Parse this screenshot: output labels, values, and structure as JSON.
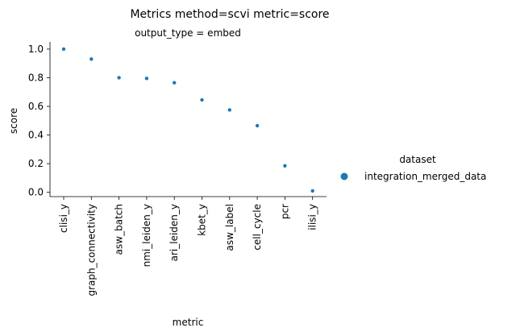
{
  "title": "Metrics method=scvi metric=score",
  "subtitle": "output_type = embed",
  "legend": {
    "title": "dataset",
    "entries": [
      {
        "label": "integration_merged_data",
        "color": "#1f77b4"
      }
    ]
  },
  "chart_data": {
    "type": "scatter",
    "title": "Metrics method=scvi metric=score",
    "subtitle": "output_type = embed",
    "xlabel": "metric",
    "ylabel": "score",
    "categories": [
      "clisi_y",
      "graph_connectivity",
      "asw_batch",
      "nmi_leiden_y",
      "ari_leiden_y",
      "kbet_y",
      "asw_label",
      "cell_cycle",
      "pcr",
      "ilisi_y"
    ],
    "series": [
      {
        "name": "integration_merged_data",
        "color": "#1f77b4",
        "values": [
          1.0,
          0.93,
          0.8,
          0.795,
          0.765,
          0.645,
          0.575,
          0.465,
          0.185,
          0.01
        ]
      }
    ],
    "ylim": [
      -0.03,
      1.05
    ],
    "yticks": [
      0.0,
      0.2,
      0.4,
      0.6,
      0.8,
      1.0
    ],
    "ytick_labels": [
      "0.0",
      "0.2",
      "0.4",
      "0.6",
      "0.8",
      "1.0"
    ],
    "grid": false,
    "legend_position": "right"
  }
}
